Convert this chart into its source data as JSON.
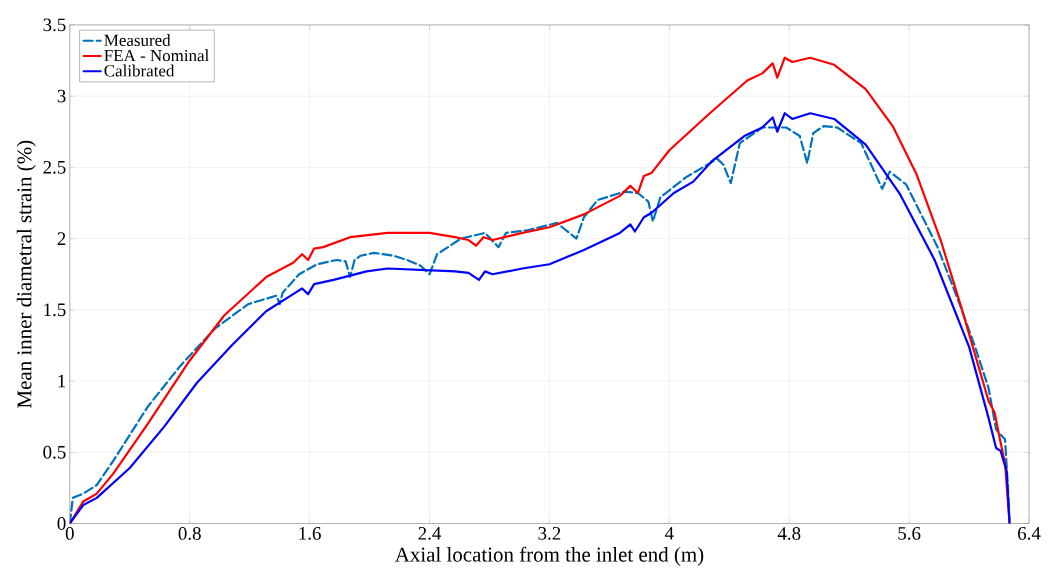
{
  "chart_data": {
    "type": "line",
    "xlabel": "Axial location from the inlet end (m)",
    "ylabel": "Mean inner diametral strain (%)",
    "xlim": [
      0,
      6.4
    ],
    "ylim": [
      0,
      3.5
    ],
    "xticks": [
      0,
      0.8,
      1.6,
      2.4,
      3.2,
      4,
      4.8,
      5.6,
      6.4
    ],
    "yticks": [
      0,
      0.5,
      1,
      1.5,
      2,
      2.5,
      3,
      3.5
    ],
    "grid": true,
    "legend": "top left",
    "line_style": "solid",
    "marker": "none",
    "series": [
      {
        "name": "Measured",
        "color": "#0072bd",
        "line_style": "dashed",
        "x": [
          0,
          0.02,
          0.09,
          0.18,
          0.29,
          0.52,
          0.74,
          0.97,
          1.19,
          1.38,
          1.4,
          1.42,
          1.53,
          1.65,
          1.78,
          1.84,
          1.87,
          1.9,
          1.94,
          2.03,
          2.16,
          2.25,
          2.34,
          2.4,
          2.45,
          2.61,
          2.77,
          2.86,
          2.91,
          3.06,
          3.25,
          3.38,
          3.43,
          3.52,
          3.7,
          3.79,
          3.86,
          3.89,
          3.94,
          4.11,
          4.32,
          4.36,
          4.41,
          4.47,
          4.62,
          4.78,
          4.87,
          4.92,
          4.96,
          5.03,
          5.12,
          5.28,
          5.42,
          5.47,
          5.58,
          5.79,
          5.93,
          6.04,
          6.13,
          6.18,
          6.24,
          6.26,
          6.27
        ],
        "values": [
          0,
          0.18,
          0.21,
          0.27,
          0.44,
          0.82,
          1.11,
          1.37,
          1.54,
          1.6,
          1.54,
          1.62,
          1.75,
          1.82,
          1.85,
          1.84,
          1.73,
          1.85,
          1.88,
          1.9,
          1.88,
          1.85,
          1.81,
          1.75,
          1.89,
          2.0,
          2.04,
          1.94,
          2.04,
          2.06,
          2.11,
          2.0,
          2.15,
          2.27,
          2.33,
          2.32,
          2.26,
          2.12,
          2.29,
          2.43,
          2.56,
          2.52,
          2.39,
          2.67,
          2.78,
          2.78,
          2.72,
          2.53,
          2.74,
          2.79,
          2.78,
          2.67,
          2.35,
          2.47,
          2.38,
          1.94,
          1.56,
          1.24,
          0.95,
          0.66,
          0.59,
          0.23,
          0
        ]
      },
      {
        "name": "FEA - Nominal",
        "color": "#ff0000",
        "x": [
          0,
          0.09,
          0.18,
          0.29,
          0.52,
          0.79,
          1.03,
          1.31,
          1.49,
          1.55,
          1.59,
          1.63,
          1.69,
          1.87,
          2.12,
          2.4,
          2.57,
          2.66,
          2.71,
          2.76,
          2.82,
          3.02,
          3.2,
          3.43,
          3.67,
          3.74,
          3.79,
          3.83,
          3.88,
          4.0,
          4.27,
          4.52,
          4.62,
          4.69,
          4.72,
          4.77,
          4.82,
          4.94,
          5.1,
          5.31,
          5.49,
          5.65,
          5.81,
          5.95,
          6.13,
          6.17,
          6.2,
          6.24,
          6.27
        ],
        "values": [
          0,
          0.155,
          0.21,
          0.35,
          0.7,
          1.13,
          1.46,
          1.73,
          1.83,
          1.89,
          1.85,
          1.93,
          1.94,
          2.01,
          2.04,
          2.04,
          2.01,
          1.99,
          1.95,
          2.01,
          1.99,
          2.04,
          2.08,
          2.17,
          2.3,
          2.37,
          2.32,
          2.44,
          2.46,
          2.62,
          2.88,
          3.11,
          3.16,
          3.23,
          3.13,
          3.27,
          3.24,
          3.27,
          3.22,
          3.05,
          2.79,
          2.45,
          1.99,
          1.51,
          0.86,
          0.78,
          0.62,
          0.42,
          0
        ]
      },
      {
        "name": "Calibrated",
        "color": "#0000ff",
        "x": [
          0,
          0.09,
          0.18,
          0.4,
          0.63,
          0.85,
          1.08,
          1.31,
          1.49,
          1.55,
          1.59,
          1.63,
          1.76,
          1.98,
          2.12,
          2.57,
          2.66,
          2.73,
          2.77,
          2.82,
          3.02,
          3.2,
          3.43,
          3.67,
          3.74,
          3.77,
          3.83,
          3.88,
          4.03,
          4.16,
          4.28,
          4.5,
          4.62,
          4.69,
          4.72,
          4.77,
          4.82,
          4.94,
          5.1,
          5.31,
          5.54,
          5.77,
          6.0,
          6.13,
          6.18,
          6.21,
          6.25,
          6.27
        ],
        "values": [
          0,
          0.13,
          0.18,
          0.39,
          0.68,
          0.99,
          1.25,
          1.49,
          1.61,
          1.65,
          1.61,
          1.68,
          1.71,
          1.77,
          1.79,
          1.77,
          1.76,
          1.71,
          1.77,
          1.75,
          1.79,
          1.82,
          1.92,
          2.04,
          2.1,
          2.05,
          2.15,
          2.18,
          2.32,
          2.4,
          2.54,
          2.72,
          2.78,
          2.85,
          2.75,
          2.88,
          2.84,
          2.88,
          2.84,
          2.66,
          2.31,
          1.85,
          1.24,
          0.74,
          0.53,
          0.51,
          0.37,
          0
        ]
      }
    ]
  }
}
